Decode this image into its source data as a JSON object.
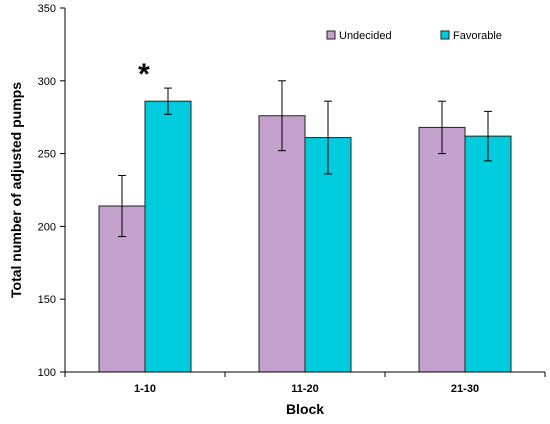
{
  "chart_data": {
    "type": "bar",
    "categories": [
      "1-10",
      "11-20",
      "21-30"
    ],
    "series": [
      {
        "name": "Undecided",
        "color": "#c4a0cc",
        "values": [
          214,
          276,
          268
        ],
        "errors": [
          21,
          24,
          18
        ]
      },
      {
        "name": "Favorable",
        "color": "#00ccdd",
        "values": [
          286,
          261,
          262
        ],
        "errors": [
          9,
          25,
          17
        ]
      }
    ],
    "xlabel": "Block",
    "ylabel": "Total number of adjusted pumps",
    "ylim": [
      100,
      350
    ],
    "yticks": [
      100,
      150,
      200,
      250,
      300,
      350
    ],
    "grid": false,
    "legend_position": "top-right",
    "annotations": [
      {
        "text": "*",
        "category": "1-10"
      }
    ]
  }
}
